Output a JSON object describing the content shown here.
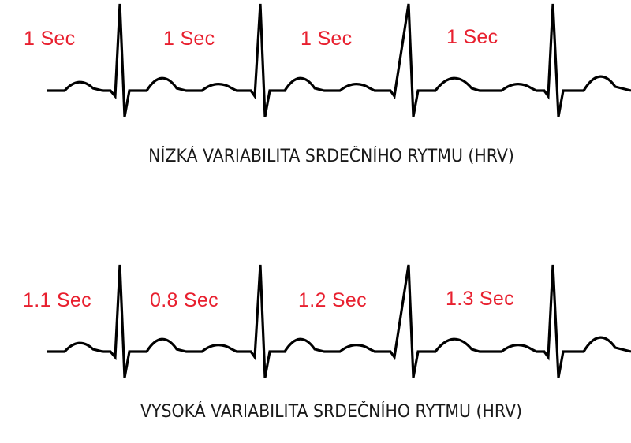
{
  "colors": {
    "interval_label": "#e8202f",
    "trace": "#000000",
    "caption": "#1a1a1a",
    "background": "#ffffff"
  },
  "panels": [
    {
      "intervals": [
        "1 Sec",
        "1 Sec",
        "1 Sec",
        "1 Sec"
      ],
      "caption": "NÍZKÁ VARIABILITA SRDEČNÍHO RYTMU (HRV)"
    },
    {
      "intervals": [
        "1.1 Sec",
        "0.8 Sec",
        "1.2 Sec",
        "1.3 Sec"
      ],
      "caption": "VYSOKÁ VARIABILITA SRDEČNÍHO RYTMU (HRV)"
    }
  ]
}
